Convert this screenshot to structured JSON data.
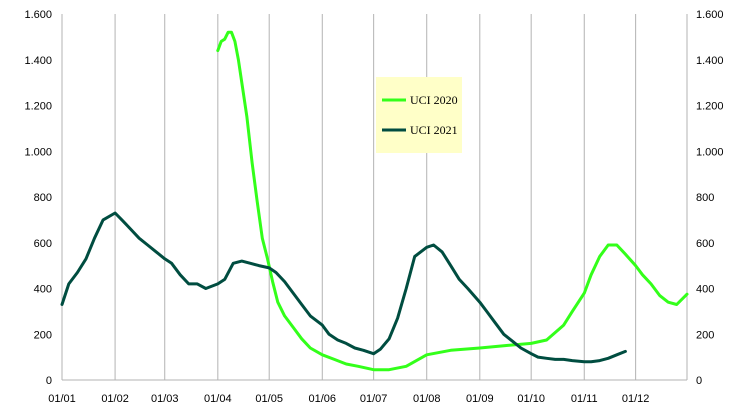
{
  "chart_data": {
    "type": "line",
    "title": "",
    "xlabel": "",
    "ylabel": "",
    "x_axis": {
      "type": "date",
      "range": [
        "2020-01-01",
        "2020-12-31"
      ],
      "tick_labels": [
        "01/01",
        "01/02",
        "01/03",
        "01/04",
        "01/05",
        "01/06",
        "01/07",
        "01/08",
        "01/09",
        "01/10",
        "01/11",
        "01/12"
      ]
    },
    "y_axis": {
      "range": [
        0,
        1600
      ],
      "ticks": [
        0,
        200,
        400,
        600,
        800,
        1000,
        1200,
        1400,
        1600
      ],
      "tick_labels": [
        "0",
        "200",
        "400",
        "600",
        "800",
        "1.000",
        "1.200",
        "1.400",
        "1.600"
      ]
    },
    "secondary_y_axis": {
      "range": [
        0,
        1600
      ],
      "tick_labels": [
        "0",
        "200",
        "400",
        "600",
        "800",
        "1.000",
        "1.200",
        "1.400",
        "1.600"
      ]
    },
    "grid": "vertical",
    "legend_position": "top-center",
    "series": [
      {
        "name": "UCI 2020",
        "color": "#33ff1a",
        "x": [
          "04-01",
          "04-03",
          "04-05",
          "04-07",
          "04-09",
          "04-11",
          "04-13",
          "04-15",
          "04-18",
          "04-21",
          "04-24",
          "04-27",
          "04-30",
          "05-03",
          "05-06",
          "05-10",
          "05-15",
          "05-20",
          "05-25",
          "06-01",
          "06-08",
          "06-15",
          "06-22",
          "07-01",
          "07-10",
          "07-20",
          "08-01",
          "08-15",
          "09-01",
          "09-15",
          "10-01",
          "10-10",
          "10-20",
          "10-25",
          "11-01",
          "11-05",
          "11-10",
          "11-15",
          "11-20",
          "11-25",
          "12-01",
          "12-05",
          "12-10",
          "12-15",
          "12-20",
          "12-25",
          "12-31"
        ],
        "y": [
          1440,
          1480,
          1490,
          1520,
          1520,
          1480,
          1400,
          1300,
          1150,
          950,
          780,
          620,
          530,
          430,
          340,
          280,
          230,
          180,
          140,
          110,
          90,
          70,
          60,
          45,
          45,
          60,
          110,
          130,
          140,
          150,
          160,
          175,
          240,
          300,
          380,
          460,
          540,
          590,
          590,
          550,
          500,
          460,
          420,
          370,
          340,
          330,
          375
        ]
      },
      {
        "name": "UCI 2021",
        "color": "#004d40",
        "x": [
          "01-01",
          "01-05",
          "01-10",
          "01-15",
          "01-20",
          "01-25",
          "02-01",
          "02-05",
          "02-10",
          "02-15",
          "02-20",
          "02-25",
          "03-01",
          "03-05",
          "03-10",
          "03-15",
          "03-20",
          "03-25",
          "04-01",
          "04-05",
          "04-10",
          "04-15",
          "04-20",
          "04-25",
          "05-01",
          "05-05",
          "05-10",
          "05-15",
          "05-20",
          "05-25",
          "06-01",
          "06-05",
          "06-10",
          "06-15",
          "06-20",
          "06-25",
          "07-01",
          "07-05",
          "07-10",
          "07-15",
          "07-20",
          "07-25",
          "08-01",
          "08-05",
          "08-10",
          "08-15",
          "08-20",
          "08-25",
          "09-01",
          "09-05",
          "09-10",
          "09-15",
          "09-20",
          "09-25",
          "10-01",
          "10-05",
          "10-10",
          "10-15",
          "10-20",
          "10-25",
          "11-01",
          "11-05",
          "11-10",
          "11-15",
          "11-20",
          "11-25"
        ],
        "y": [
          330,
          420,
          470,
          530,
          620,
          700,
          730,
          700,
          660,
          620,
          590,
          560,
          530,
          510,
          460,
          420,
          420,
          400,
          420,
          440,
          510,
          520,
          510,
          500,
          490,
          470,
          430,
          380,
          330,
          280,
          240,
          200,
          175,
          160,
          140,
          130,
          115,
          135,
          180,
          270,
          400,
          540,
          580,
          590,
          560,
          500,
          440,
          400,
          340,
          300,
          250,
          200,
          170,
          140,
          115,
          100,
          95,
          90,
          90,
          85,
          80,
          80,
          85,
          95,
          110,
          125
        ]
      }
    ]
  }
}
